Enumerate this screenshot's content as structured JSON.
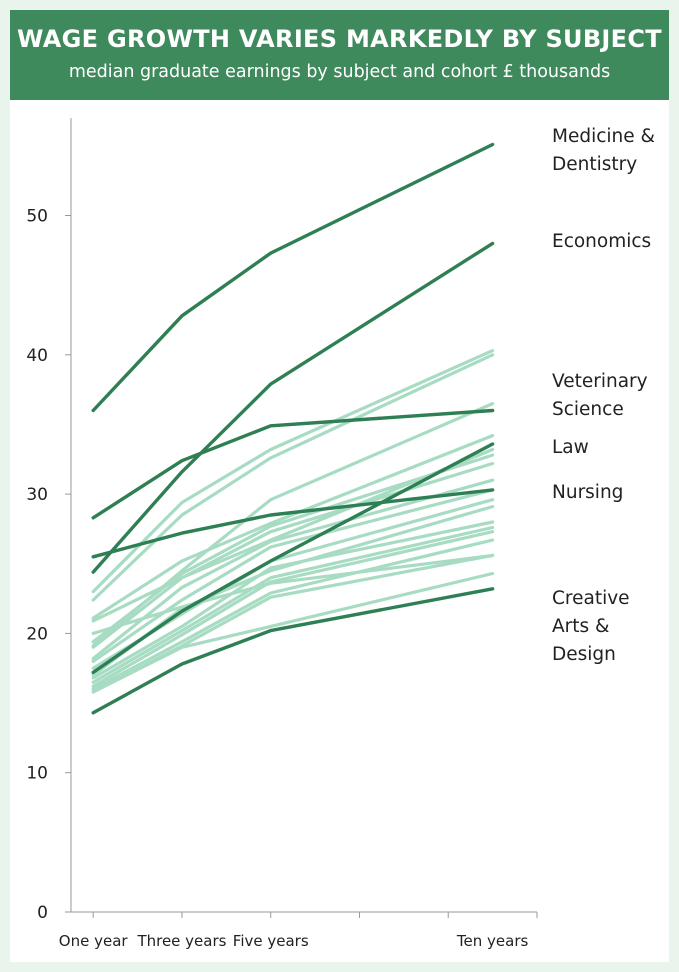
{
  "chart_data": {
    "type": "line",
    "title": "WAGE GROWTH VARIES MARKEDLY BY SUBJECT",
    "subtitle": "median graduate earnings by subject and cohort £ thousands",
    "x": [
      "One year",
      "Three years",
      "Five years",
      "Ten years"
    ],
    "x_positions": [
      1,
      3,
      5,
      10
    ],
    "ylim": [
      0,
      57
    ],
    "yticks": [
      0,
      10,
      20,
      30,
      40,
      50
    ],
    "grid": false,
    "colors": {
      "highlight": "#2f7f55",
      "other": "#a7dcc3",
      "header": "#3e8a5c",
      "background": "#e9f4ec"
    },
    "highlighted_series": [
      {
        "name": "Medicine & Dentistry",
        "label_lines": [
          "Medicine &",
          "Dentistry"
        ],
        "values": [
          36.0,
          42.8,
          47.3,
          55.1
        ]
      },
      {
        "name": "Economics",
        "label_lines": [
          "Economics"
        ],
        "values": [
          24.4,
          31.6,
          37.9,
          48.0
        ]
      },
      {
        "name": "Veterinary Science",
        "label_lines": [
          "Veterinary",
          "Science"
        ],
        "values": [
          28.3,
          32.4,
          34.9,
          36.0
        ]
      },
      {
        "name": "Law",
        "label_lines": [
          "Law"
        ],
        "values": [
          17.2,
          21.6,
          25.2,
          33.6
        ]
      },
      {
        "name": "Nursing",
        "label_lines": [
          "Nursing"
        ],
        "values": [
          25.5,
          27.2,
          28.5,
          30.3
        ]
      },
      {
        "name": "Creative Arts & Design",
        "label_lines": [
          "Creative",
          "Arts &",
          "Design"
        ],
        "values": [
          14.3,
          17.8,
          20.2,
          23.2
        ]
      }
    ],
    "other_series": [
      {
        "values": [
          23.0,
          29.4,
          33.2,
          40.3
        ]
      },
      {
        "values": [
          22.4,
          28.5,
          32.6,
          40.0
        ]
      },
      {
        "values": [
          21.1,
          25.2,
          27.9,
          34.2
        ]
      },
      {
        "values": [
          20.9,
          24.0,
          26.7,
          33.2
        ]
      },
      {
        "values": [
          19.4,
          24.3,
          27.7,
          32.8
        ]
      },
      {
        "values": [
          19.0,
          24.0,
          27.3,
          32.2
        ]
      },
      {
        "values": [
          19.1,
          24.5,
          29.6,
          36.5
        ]
      },
      {
        "values": [
          18.2,
          23.3,
          26.6,
          31.0
        ]
      },
      {
        "values": [
          18.0,
          22.4,
          26.2,
          30.3
        ]
      },
      {
        "values": [
          17.5,
          21.4,
          25.2,
          29.6
        ]
      },
      {
        "values": [
          17.0,
          21.8,
          24.5,
          29.1
        ]
      },
      {
        "values": [
          16.8,
          20.5,
          24.7,
          28.0
        ]
      },
      {
        "values": [
          16.5,
          20.2,
          24.0,
          27.6
        ]
      },
      {
        "values": [
          16.2,
          19.9,
          23.7,
          27.3
        ]
      },
      {
        "values": [
          16.0,
          19.4,
          22.9,
          26.7
        ]
      },
      {
        "values": [
          15.8,
          19.1,
          22.6,
          25.6
        ]
      },
      {
        "values": [
          15.8,
          19.0,
          20.5,
          24.3
        ]
      },
      {
        "values": [
          20.0,
          21.9,
          23.6,
          25.6
        ]
      }
    ]
  }
}
